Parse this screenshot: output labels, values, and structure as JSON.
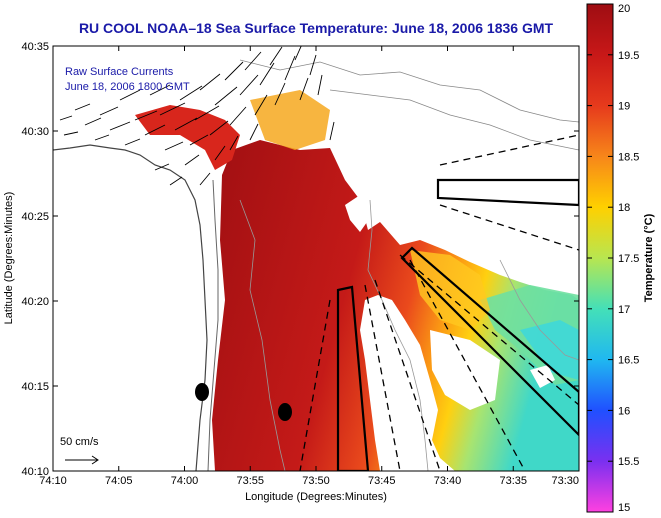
{
  "title": "RU COOL  NOAA–18  Sea Surface Temperature:  June 18, 2006 1836 GMT",
  "overlay": {
    "line1": "Raw Surface Currents",
    "line2": "June 18, 2006 1800 GMT"
  },
  "scale_label": "50 cm/s",
  "axes": {
    "xlabel": "Longitude (Degrees:Minutes)",
    "ylabel": "Latitude (Degrees:Minutes)",
    "x_ticks": [
      "74:10",
      "74:05",
      "74:00",
      "73:55",
      "73:50",
      "73:45",
      "73:40",
      "73:35",
      "73:30"
    ],
    "y_ticks": [
      "40:35",
      "40:30",
      "40:25",
      "40:20",
      "40:15",
      "40:10"
    ]
  },
  "colorbar": {
    "label": "Temperature (°C)",
    "ticks": [
      "20",
      "19.5",
      "19",
      "18.5",
      "18",
      "17.5",
      "17",
      "16.5",
      "16",
      "15.5",
      "15"
    ],
    "colors": [
      "#9e0d12",
      "#d42020",
      "#f05a1e",
      "#ffa200",
      "#ffe800",
      "#9be86a",
      "#2ee0e0",
      "#2a78ff",
      "#1a1ad8",
      "#a040ff",
      "#ff40e0"
    ]
  }
}
